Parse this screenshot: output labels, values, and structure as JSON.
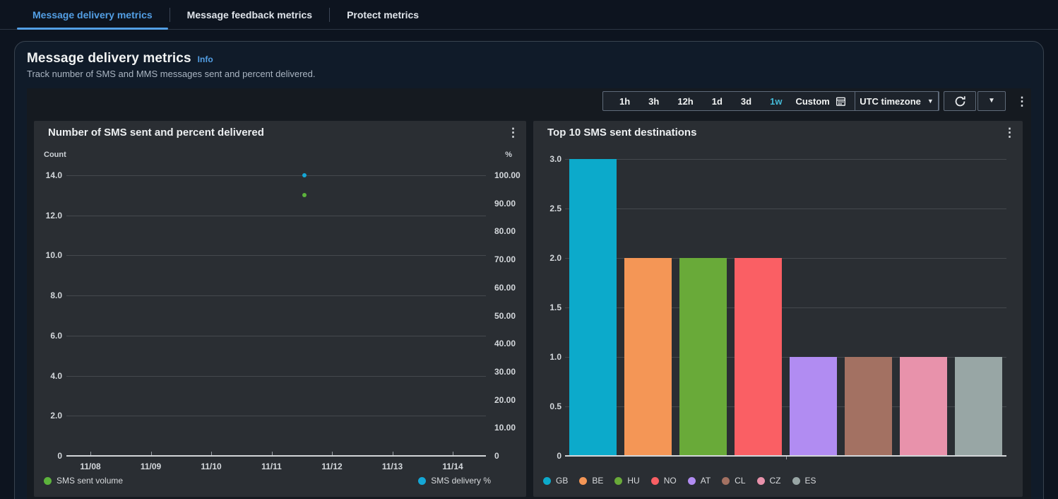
{
  "tabs": [
    {
      "label": "Message delivery metrics",
      "active": true
    },
    {
      "label": "Message feedback metrics",
      "active": false
    },
    {
      "label": "Protect metrics",
      "active": false
    }
  ],
  "header": {
    "title": "Message delivery metrics",
    "info_label": "Info",
    "subtitle": "Track number of SMS and MMS messages sent and percent delivered."
  },
  "toolbar": {
    "ranges": [
      "1h",
      "3h",
      "12h",
      "1d",
      "3d",
      "1w"
    ],
    "active_range": "1w",
    "custom_label": "Custom",
    "custom_icon": "calendar-icon",
    "timezone_label": "UTC timezone",
    "refresh_icon": "refresh-icon",
    "caret_icon": "chevron-down-icon",
    "more_icon": "kebab-menu-icon"
  },
  "colors": {
    "accent_blue": "#539fe5",
    "active_range_cyan": "#44b9d6",
    "card_bg": "#2a2e33",
    "panel_bg": "#101b29"
  },
  "chart_data": [
    {
      "type": "scatter",
      "title": "Number of SMS sent and percent delivered",
      "left_axis": {
        "label": "Count",
        "range": [
          0,
          14
        ],
        "ticks": [
          "14.0",
          "12.0",
          "10.0",
          "8.0",
          "6.0",
          "4.0",
          "2.0",
          "0"
        ]
      },
      "right_axis": {
        "label": "%",
        "range": [
          0,
          100
        ],
        "ticks": [
          "100.00",
          "90.00",
          "80.00",
          "70.00",
          "60.00",
          "50.00",
          "40.00",
          "30.00",
          "20.00",
          "10.00",
          "0"
        ]
      },
      "x_ticks": [
        "11/08",
        "11/09",
        "11/10",
        "11/11",
        "11/12",
        "11/13",
        "11/14"
      ],
      "grid": true,
      "series": [
        {
          "name": "SMS sent volume",
          "color": "#5cb33c",
          "axis": "left",
          "points": [
            {
              "x_index": 3.54,
              "x_label": "11/11",
              "value": 13
            }
          ]
        },
        {
          "name": "SMS delivery %",
          "color": "#14a7d6",
          "axis": "right",
          "points": [
            {
              "x_index": 3.54,
              "x_label": "11/11",
              "value": 100
            }
          ]
        }
      ],
      "legend_position": "bottom"
    },
    {
      "type": "bar",
      "title": "Top 10 SMS sent destinations",
      "ylabel": "",
      "ylim": [
        0,
        3
      ],
      "y_ticks": [
        "3.0",
        "2.5",
        "2.0",
        "1.5",
        "1.0",
        "0.5",
        "0"
      ],
      "grid": true,
      "categories": [
        "GB",
        "BE",
        "HU",
        "NO",
        "AT",
        "CL",
        "CZ",
        "ES"
      ],
      "values": [
        3,
        2,
        2,
        2,
        1,
        1,
        1,
        1
      ],
      "colors": [
        "#0caacb",
        "#f49656",
        "#69aa39",
        "#fa5f64",
        "#b18cf2",
        "#a37162",
        "#e892ab",
        "#98a6a5"
      ],
      "legend_position": "bottom"
    }
  ]
}
